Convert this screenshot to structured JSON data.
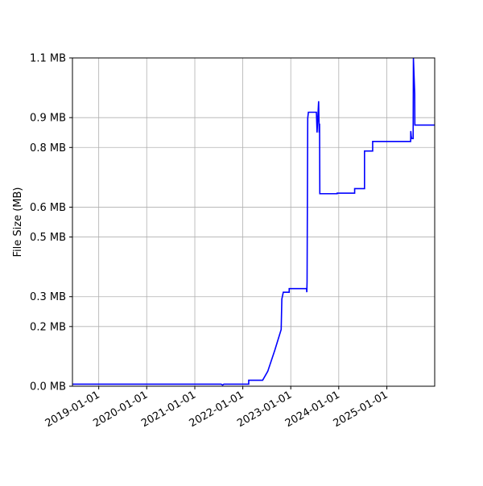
{
  "chart_data": {
    "type": "line",
    "title": "",
    "xlabel": "",
    "ylabel": "File Size (MB)",
    "grid": true,
    "legend": "none",
    "xlim": [
      "2018-06-15",
      "2025-12-31"
    ],
    "ylim": [
      0,
      1.1
    ],
    "x_tick_labels": [
      "2019-01-01",
      "2020-01-01",
      "2021-01-01",
      "2022-01-01",
      "2023-01-01",
      "2024-01-01",
      "2025-01-01"
    ],
    "y_ticks": [
      0.0,
      0.2,
      0.3,
      0.5,
      0.6,
      0.8,
      0.9,
      1.1
    ],
    "y_tick_labels": [
      "0.0 MB",
      "0.2 MB",
      "0.3 MB",
      "0.5 MB",
      "0.6 MB",
      "0.8 MB",
      "0.9 MB",
      "1.1 MB"
    ],
    "line_color": "#0000ff",
    "series": [
      {
        "x": [
          "2018-06-15",
          "2021-07-20",
          "2021-08-01",
          "2021-08-10",
          "2022-01-10",
          "2022-02-15",
          "2022-02-15",
          "2022-06-01",
          "2022-06-01",
          "2022-07-10",
          "2022-09-01",
          "2022-10-20",
          "2022-10-20",
          "2022-10-25",
          "2022-10-25",
          "2022-11-05",
          "2022-11-05",
          "2022-12-20",
          "2022-12-20",
          "2023-01-01",
          "2023-05-01",
          "2023-05-03",
          "2023-05-05",
          "2023-05-10",
          "2023-05-10",
          "2023-05-15",
          "2023-06-01",
          "2023-06-01",
          "2023-07-01",
          "2023-07-15",
          "2023-07-20",
          "2023-08-01",
          "2023-08-05",
          "2023-08-08",
          "2023-08-10",
          "2023-08-12",
          "2023-12-20",
          "2023-12-20",
          "2024-05-01",
          "2024-05-01",
          "2024-07-15",
          "2024-07-15",
          "2024-09-15",
          "2024-09-15",
          "2025-07-01",
          "2025-07-02",
          "2025-07-05",
          "2025-07-08",
          "2025-07-20",
          "2025-07-22",
          "2025-08-01",
          "2025-08-02",
          "2025-08-03",
          "2025-12-31"
        ],
        "values": [
          0.007,
          0.007,
          0.004,
          0.007,
          0.007,
          0.007,
          0.02,
          0.02,
          0.02,
          0.05,
          0.12,
          0.19,
          0.19,
          0.292,
          0.292,
          0.315,
          0.315,
          0.315,
          0.327,
          0.327,
          0.327,
          0.315,
          0.35,
          0.898,
          0.898,
          0.918,
          0.918,
          0.918,
          0.918,
          0.918,
          0.85,
          0.955,
          0.85,
          0.88,
          0.645,
          0.645,
          0.645,
          0.647,
          0.647,
          0.662,
          0.662,
          0.788,
          0.788,
          0.82,
          0.82,
          0.855,
          0.84,
          0.83,
          0.83,
          1.1,
          0.98,
          0.875,
          0.875,
          0.875
        ]
      }
    ]
  }
}
